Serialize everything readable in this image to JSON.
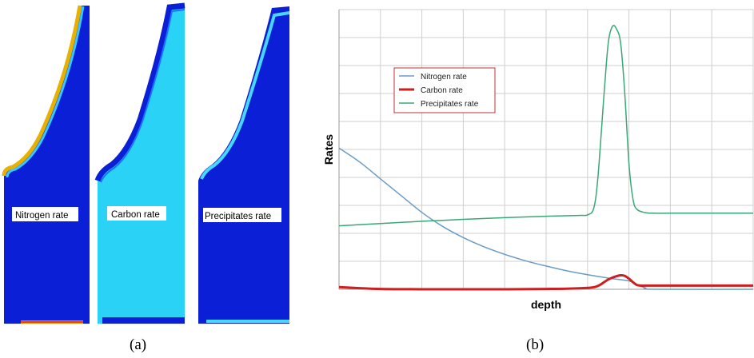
{
  "panel_a": {
    "caption": "(a)",
    "fields": [
      {
        "label": "Nitrogen rate",
        "fill": "#0a1fd6",
        "edge": "#e8b000",
        "edge_inner": "#34c8ff"
      },
      {
        "label": "Carbon rate",
        "fill": "#2ad2f5",
        "edge": "#0a1fd6",
        "edge_inner": "#1a70ff"
      },
      {
        "label": "Precipitates rate",
        "fill": "#0a1fd6",
        "edge": "#48d8ff",
        "edge_inner": "#1a60ff"
      }
    ]
  },
  "panel_b": {
    "caption": "(b)"
  },
  "chart_data": {
    "type": "line",
    "title": "",
    "xlabel": "depth",
    "ylabel": "Rates",
    "xlim": [
      0,
      1
    ],
    "ylim": [
      0,
      1
    ],
    "grid": true,
    "legend": "top-left",
    "series": [
      {
        "name": "Nitrogen rate",
        "color": "#6a9cc6",
        "x": [
          0,
          0.05,
          0.1,
          0.15,
          0.2,
          0.25,
          0.3,
          0.35,
          0.4,
          0.45,
          0.5,
          0.55,
          0.6,
          0.65,
          0.7,
          0.72,
          0.74,
          0.76,
          1.0
        ],
        "y": [
          0.505,
          0.455,
          0.395,
          0.335,
          0.275,
          0.225,
          0.185,
          0.152,
          0.125,
          0.102,
          0.083,
          0.066,
          0.052,
          0.04,
          0.03,
          0.017,
          0.005,
          0.0,
          0.0
        ]
      },
      {
        "name": "Carbon rate",
        "color": "#cc1f1f",
        "x": [
          0,
          0.05,
          0.1,
          0.2,
          0.3,
          0.4,
          0.5,
          0.55,
          0.6,
          0.625,
          0.65,
          0.67,
          0.68,
          0.69,
          0.7,
          0.71,
          0.72,
          0.73,
          0.74,
          0.76,
          0.8,
          0.9,
          1.0
        ],
        "y": [
          0.008,
          0.004,
          0.001,
          0.0,
          0.0,
          0.0,
          0.001,
          0.002,
          0.005,
          0.012,
          0.035,
          0.047,
          0.05,
          0.048,
          0.038,
          0.025,
          0.015,
          0.013,
          0.013,
          0.013,
          0.013,
          0.013,
          0.013
        ]
      },
      {
        "name": "Precipitates rate",
        "color": "#3aa876",
        "x": [
          0,
          0.1,
          0.2,
          0.3,
          0.4,
          0.5,
          0.58,
          0.6,
          0.615,
          0.625,
          0.64,
          0.65,
          0.66,
          0.67,
          0.68,
          0.69,
          0.7,
          0.71,
          0.72,
          0.74,
          0.76,
          0.8,
          0.9,
          1.0
        ],
        "y": [
          0.227,
          0.235,
          0.243,
          0.25,
          0.256,
          0.261,
          0.264,
          0.266,
          0.29,
          0.4,
          0.7,
          0.88,
          0.94,
          0.93,
          0.88,
          0.7,
          0.45,
          0.32,
          0.285,
          0.274,
          0.272,
          0.272,
          0.272,
          0.272
        ]
      }
    ]
  }
}
